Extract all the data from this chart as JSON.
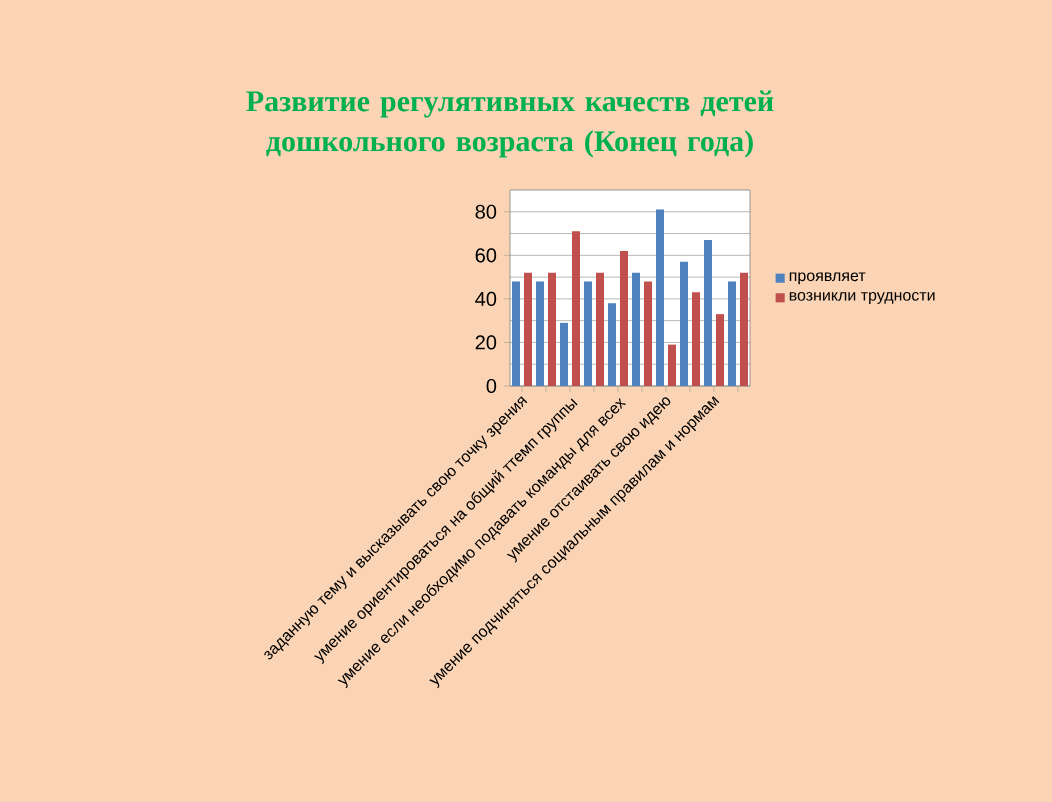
{
  "chart_data": {
    "type": "bar",
    "title": "Развитие регулятивных качеств детей дошкольного возраста (Конец года)",
    "categories": [
      "заданную тему и высказывать свою точку зрения",
      null,
      "умение ориентироваться на общий ттемп группы",
      null,
      "умение если необходимо подавать команды для всех",
      null,
      "умение отстаивать свою идею",
      null,
      "умение подчиняться социальным правилам и нормам",
      null
    ],
    "series": [
      {
        "name": "проявляет",
        "color": "#4f81bd",
        "values": [
          48,
          48,
          29,
          48,
          38,
          52,
          81,
          57,
          67,
          48
        ]
      },
      {
        "name": "возникли трудности",
        "color": "#c0504d",
        "values": [
          52,
          52,
          71,
          52,
          62,
          48,
          19,
          43,
          33,
          52
        ]
      }
    ],
    "ylim": [
      0,
      90
    ],
    "yticks": [
      0,
      20,
      40,
      60,
      80
    ],
    "grid": "y",
    "legend": "right"
  }
}
